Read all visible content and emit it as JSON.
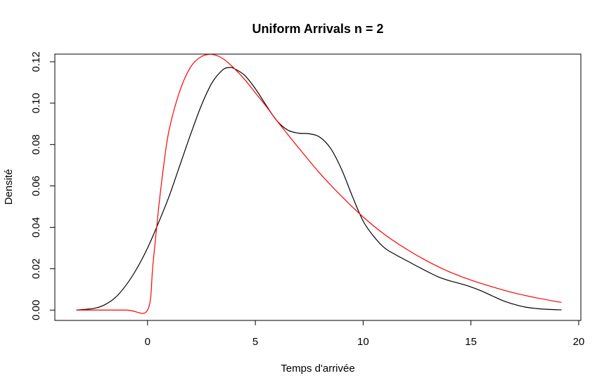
{
  "chart_data": {
    "type": "line",
    "title": "Uniform Arrivals n = 2",
    "xlabel": "Temps d'arrivée",
    "ylabel": "Densité",
    "xlim": [
      -4.3,
      20.1
    ],
    "ylim": [
      -0.005,
      0.1237
    ],
    "x_ticks": [
      0,
      5,
      10,
      15,
      20
    ],
    "y_ticks": [
      0.0,
      0.02,
      0.04,
      0.06,
      0.08,
      0.1,
      0.12
    ],
    "x_tick_labels": [
      "0",
      "5",
      "10",
      "15",
      "20"
    ],
    "y_tick_labels": [
      "0.00",
      "0.02",
      "0.04",
      "0.06",
      "0.08",
      "0.10",
      "0.12"
    ],
    "grid": false,
    "legend": "none",
    "series": [
      {
        "color": "#000000",
        "x": [
          -3.3,
          -2.5,
          -2.0,
          -1.5,
          -1.0,
          -0.5,
          0.0,
          0.5,
          1.0,
          1.5,
          2.0,
          2.5,
          3.0,
          3.5,
          3.8,
          4.0,
          4.5,
          5.0,
          5.5,
          6.0,
          6.5,
          7.0,
          7.5,
          8.0,
          8.5,
          9.0,
          9.5,
          10.0,
          10.5,
          11.0,
          11.5,
          12.0,
          12.5,
          13.0,
          13.5,
          14.0,
          14.5,
          15.0,
          15.5,
          16.0,
          16.5,
          17.0,
          17.5,
          18.0,
          18.5,
          19.2
        ],
        "y": [
          0.0,
          0.0008,
          0.0025,
          0.006,
          0.012,
          0.02,
          0.03,
          0.042,
          0.055,
          0.07,
          0.085,
          0.099,
          0.11,
          0.1162,
          0.1172,
          0.1168,
          0.1135,
          0.107,
          0.099,
          0.0915,
          0.087,
          0.0855,
          0.0852,
          0.0835,
          0.078,
          0.068,
          0.055,
          0.043,
          0.0355,
          0.03,
          0.0268,
          0.024,
          0.0212,
          0.0185,
          0.016,
          0.0142,
          0.0128,
          0.0112,
          0.0092,
          0.0068,
          0.0045,
          0.0028,
          0.0015,
          0.0008,
          0.0004,
          0.0001
        ]
      },
      {
        "color": "#ff0000",
        "x": [
          -3.3,
          -1.0,
          0.0,
          0.25,
          0.5,
          0.75,
          1.0,
          1.5,
          2.0,
          2.5,
          3.0,
          3.5,
          4.0,
          4.5,
          5.0,
          5.5,
          6.0,
          7.0,
          8.0,
          9.0,
          10.0,
          11.0,
          12.0,
          13.0,
          14.0,
          15.0,
          16.0,
          17.0,
          18.0,
          19.2
        ],
        "y": [
          0.0,
          0.0,
          0.0,
          0.022,
          0.048,
          0.07,
          0.087,
          0.106,
          0.1175,
          0.1225,
          0.1235,
          0.1215,
          0.117,
          0.1115,
          0.105,
          0.0985,
          0.0915,
          0.0785,
          0.066,
          0.055,
          0.045,
          0.0365,
          0.0295,
          0.0235,
          0.0185,
          0.0145,
          0.0112,
          0.0083,
          0.006,
          0.0037
        ]
      }
    ]
  }
}
